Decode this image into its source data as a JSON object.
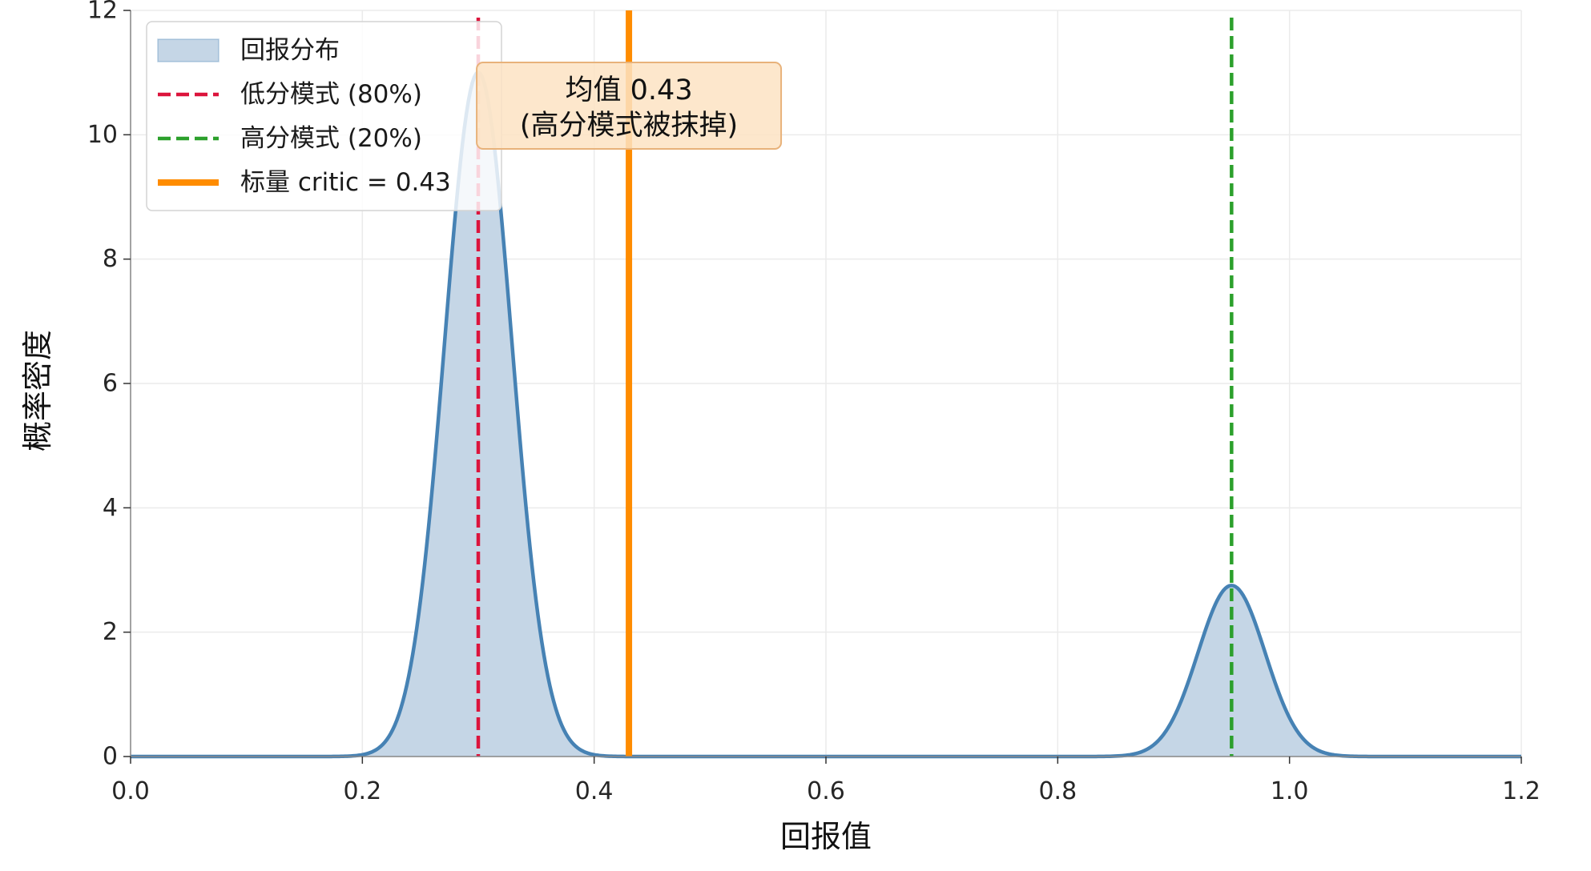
{
  "chart_data": {
    "type": "area",
    "title": "",
    "xlabel": "回报值",
    "ylabel": "概率密度",
    "xlim": [
      0.0,
      1.2
    ],
    "ylim": [
      0,
      12
    ],
    "x_ticks": [
      0.0,
      0.2,
      0.4,
      0.6,
      0.8,
      1.0,
      1.2
    ],
    "x_tick_labels": [
      "0.0",
      "0.2",
      "0.4",
      "0.6",
      "0.8",
      "1.0",
      "1.2"
    ],
    "y_ticks": [
      0,
      2,
      4,
      6,
      8,
      10,
      12
    ],
    "y_tick_labels": [
      "0",
      "2",
      "4",
      "6",
      "8",
      "10",
      "12"
    ],
    "grid": true,
    "legend_position": "top-left",
    "series": [
      {
        "name": "回报分布",
        "kind": "density-area",
        "color": "#4682b4",
        "fill_color": "#c5d6e6",
        "components": [
          {
            "weight": 0.8,
            "mean": 0.3,
            "std": 0.029
          },
          {
            "weight": 0.2,
            "mean": 0.95,
            "std": 0.029
          }
        ]
      }
    ],
    "reference_lines": [
      {
        "name": "低分模式 (80%)",
        "x": 0.3,
        "style": "dashed",
        "color": "#dc143c"
      },
      {
        "name": "高分模式 (20%)",
        "x": 0.95,
        "style": "dashed",
        "color": "#2ca02c"
      },
      {
        "name": "标量 critic = 0.43",
        "x": 0.43,
        "style": "solid",
        "color": "#ff8c00"
      }
    ],
    "annotation": {
      "lines": [
        "均值 0.43",
        "(高分模式被抹掉)"
      ],
      "x": 0.43,
      "y": 11.0,
      "box_color": "#fde3c3",
      "border_color": "#e8b27a"
    }
  }
}
